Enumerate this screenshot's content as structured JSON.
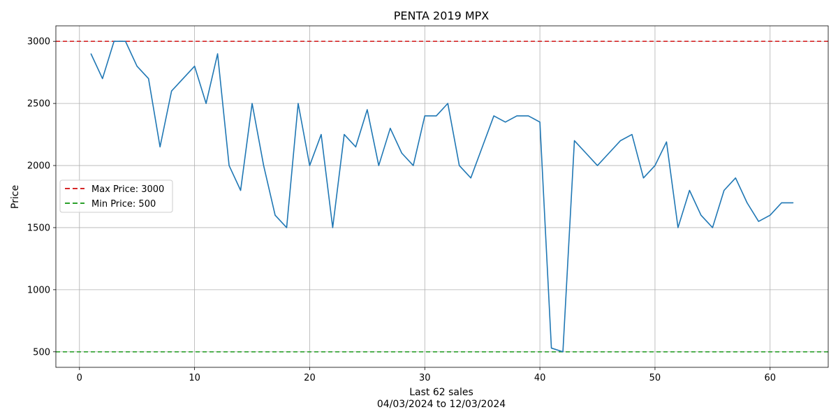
{
  "chart_data": {
    "type": "line",
    "title": "PENTA 2019 MPX",
    "xlabel": "Last 62 sales",
    "xlabel_sub": "04/03/2024 to 12/03/2024",
    "ylabel": "Price",
    "xlim": [
      -2.05,
      65.05
    ],
    "ylim": [
      375,
      3125
    ],
    "xticks": [
      0,
      10,
      20,
      30,
      40,
      50,
      60
    ],
    "yticks": [
      500,
      1000,
      1500,
      2000,
      2500,
      3000
    ],
    "grid": true,
    "legend_position": "center-left",
    "series": [
      {
        "color": "#1f77b4",
        "x": [
          1,
          2,
          3,
          4,
          5,
          6,
          7,
          8,
          9,
          10,
          11,
          12,
          13,
          14,
          15,
          16,
          17,
          18,
          19,
          20,
          21,
          22,
          23,
          24,
          25,
          26,
          27,
          28,
          29,
          30,
          31,
          32,
          33,
          34,
          35,
          36,
          37,
          38,
          39,
          40,
          41,
          42,
          43,
          44,
          45,
          46,
          47,
          48,
          49,
          50,
          51,
          52,
          53,
          54,
          55,
          56,
          57,
          58,
          59,
          60,
          61,
          62
        ],
        "values": [
          2900,
          2700,
          3000,
          3000,
          2800,
          2700,
          2150,
          2600,
          2700,
          2800,
          2500,
          2900,
          2000,
          1800,
          2500,
          2000,
          1600,
          1500,
          2500,
          2000,
          2250,
          1500,
          2250,
          2150,
          2450,
          2000,
          2300,
          2100,
          2000,
          2400,
          2400,
          2500,
          2000,
          1900,
          2150,
          2400,
          2350,
          2400,
          2400,
          2350,
          530,
          500,
          2200,
          2100,
          2000,
          2100,
          2200,
          2250,
          1900,
          2000,
          2190,
          1500,
          1800,
          1600,
          1500,
          1800,
          1900,
          1700,
          1550,
          1600,
          1700,
          1700
        ]
      }
    ],
    "reference_lines": [
      {
        "name": "Max Price: 3000",
        "value": 3000,
        "color": "#d62728"
      },
      {
        "name": "Min Price: 500",
        "value": 500,
        "color": "#2ca02c"
      }
    ]
  }
}
